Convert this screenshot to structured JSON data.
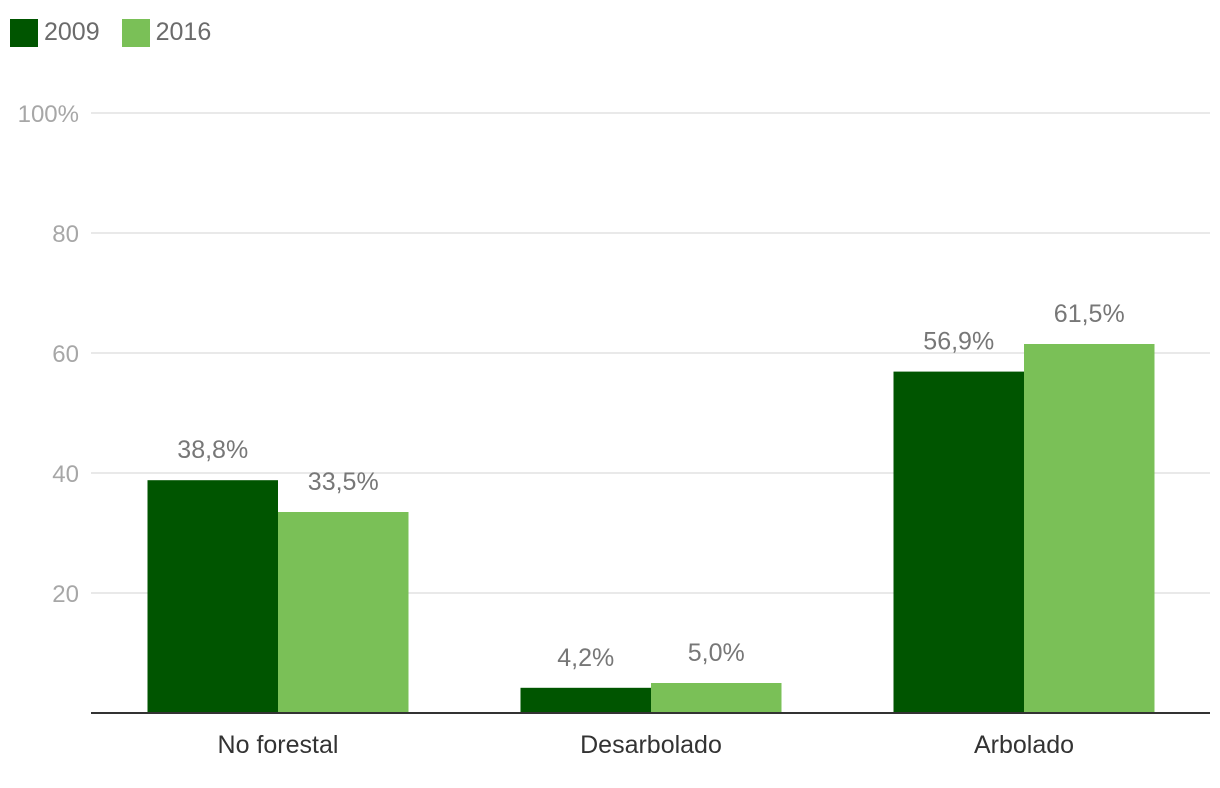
{
  "chart_data": {
    "type": "bar",
    "categories": [
      "No forestal",
      "Desarbolado",
      "Arbolado"
    ],
    "series": [
      {
        "name": "2009",
        "values": [
          38.8,
          4.2,
          56.9
        ],
        "labels": [
          "38,8%",
          "4,2%",
          "56,9%"
        ],
        "color": "#005500"
      },
      {
        "name": "2016",
        "values": [
          33.5,
          5.0,
          61.5
        ],
        "labels": [
          "33,5%",
          "5,0%",
          "61,5%"
        ],
        "color": "#7ac057"
      }
    ],
    "ylim": [
      0,
      100
    ],
    "yticks": [
      20,
      40,
      60,
      80,
      100
    ],
    "ytick_labels": [
      "20",
      "40",
      "60",
      "80",
      "100%"
    ],
    "grid": true,
    "legend_position": "top-left",
    "title": "",
    "xlabel": "",
    "ylabel": ""
  }
}
